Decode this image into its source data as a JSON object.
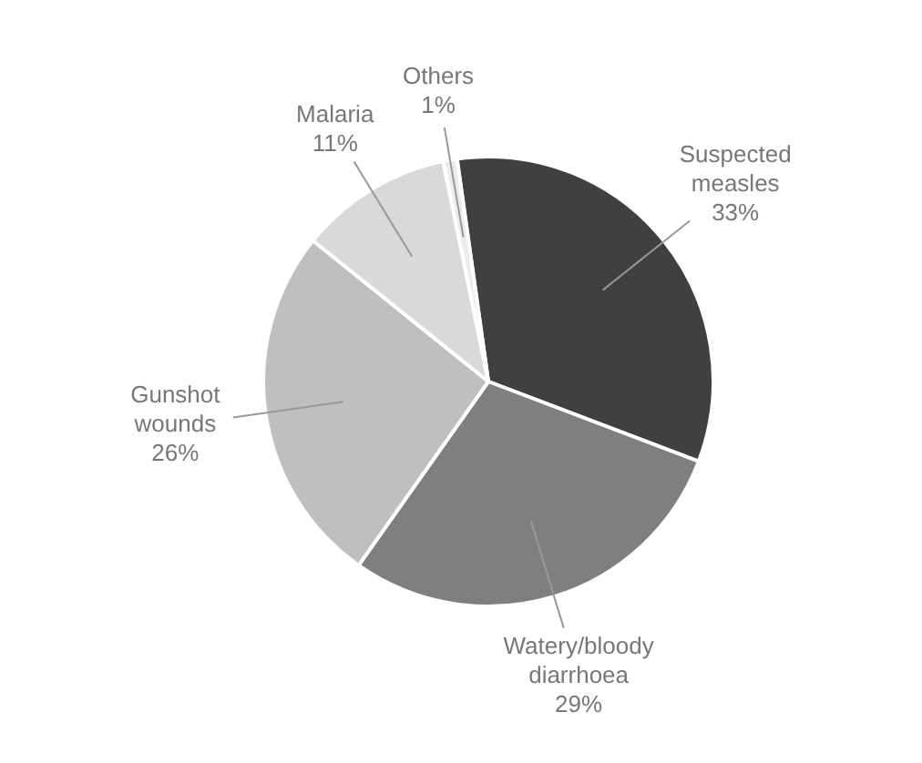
{
  "chart_data": {
    "type": "pie",
    "categories": [
      "Suspected measles",
      "Watery/bloody diarrhoea",
      "Gunshot wounds",
      "Malaria",
      "Others"
    ],
    "values": [
      33,
      29,
      26,
      11,
      1
    ],
    "colors": [
      "#404040",
      "#7f7f7f",
      "#bfbfbf",
      "#d9d9d9",
      "#ececec"
    ],
    "value_labels": [
      "33%",
      "29%",
      "26%",
      "11%",
      "1%"
    ],
    "legend": false
  }
}
